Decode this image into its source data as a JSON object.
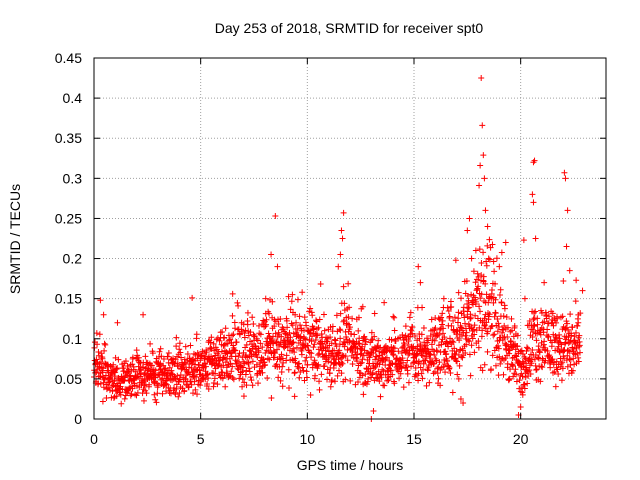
{
  "chart_data": {
    "type": "scatter",
    "title": "Day 253 of 2018, SRMTID for receiver spt0",
    "xlabel": "GPS time / hours",
    "ylabel": "SRMTID / TECUs",
    "xlim": [
      0,
      24
    ],
    "ylim": [
      0,
      0.45
    ],
    "grid": true,
    "marker": "+",
    "series_color": "#ff0000",
    "x_ticks": [
      {
        "value": 0,
        "label": "0"
      },
      {
        "value": 5,
        "label": "5"
      },
      {
        "value": 10,
        "label": "10"
      },
      {
        "value": 15,
        "label": "15"
      },
      {
        "value": 20,
        "label": "20"
      }
    ],
    "y_ticks": [
      {
        "value": 0,
        "label": "0"
      },
      {
        "value": 0.05,
        "label": "0.05"
      },
      {
        "value": 0.1,
        "label": "0.1"
      },
      {
        "value": 0.15,
        "label": "0.15"
      },
      {
        "value": 0.2,
        "label": "0.2"
      },
      {
        "value": 0.25,
        "label": "0.25"
      },
      {
        "value": 0.3,
        "label": "0.3"
      },
      {
        "value": 0.35,
        "label": "0.35"
      },
      {
        "value": 0.4,
        "label": "0.4"
      },
      {
        "value": 0.45,
        "label": "0.45"
      }
    ],
    "series": [
      {
        "name": "spt0",
        "trend": [
          [
            0.0,
            0.065
          ],
          [
            1.0,
            0.05
          ],
          [
            2.0,
            0.055
          ],
          [
            3.0,
            0.055
          ],
          [
            4.0,
            0.06
          ],
          [
            5.0,
            0.065
          ],
          [
            6.0,
            0.075
          ],
          [
            7.0,
            0.08
          ],
          [
            8.0,
            0.085
          ],
          [
            9.0,
            0.09
          ],
          [
            10.0,
            0.09
          ],
          [
            11.0,
            0.085
          ],
          [
            12.0,
            0.09
          ],
          [
            13.0,
            0.07
          ],
          [
            14.0,
            0.075
          ],
          [
            15.0,
            0.08
          ],
          [
            16.0,
            0.085
          ],
          [
            17.0,
            0.1
          ],
          [
            17.5,
            0.12
          ],
          [
            18.0,
            0.15
          ],
          [
            18.5,
            0.14
          ],
          [
            19.0,
            0.11
          ],
          [
            19.5,
            0.09
          ],
          [
            20.0,
            0.06
          ],
          [
            20.5,
            0.09
          ],
          [
            21.0,
            0.1
          ],
          [
            22.0,
            0.09
          ],
          [
            22.8,
            0.085
          ]
        ],
        "highlights": [
          [
            0.3,
            0.148
          ],
          [
            0.45,
            0.13
          ],
          [
            1.1,
            0.12
          ],
          [
            2.3,
            0.13
          ],
          [
            4.6,
            0.151
          ],
          [
            6.5,
            0.156
          ],
          [
            8.05,
            0.15
          ],
          [
            8.3,
            0.205
          ],
          [
            8.5,
            0.253
          ],
          [
            8.6,
            0.19
          ],
          [
            9.3,
            0.155
          ],
          [
            11.7,
            0.257
          ],
          [
            11.6,
            0.235
          ],
          [
            11.65,
            0.225
          ],
          [
            11.55,
            0.205
          ],
          [
            11.45,
            0.19
          ],
          [
            11.7,
            0.165
          ],
          [
            12.6,
            0.14
          ],
          [
            13.0,
            0.0
          ],
          [
            13.1,
            0.01
          ],
          [
            13.6,
            0.145
          ],
          [
            15.2,
            0.19
          ],
          [
            15.3,
            0.17
          ],
          [
            16.4,
            0.15
          ],
          [
            17.1,
            0.05
          ],
          [
            17.2,
            0.025
          ],
          [
            17.3,
            0.02
          ],
          [
            17.5,
            0.235
          ],
          [
            17.6,
            0.25
          ],
          [
            17.7,
            0.2
          ],
          [
            17.9,
            0.21
          ],
          [
            18.05,
            0.291
          ],
          [
            18.1,
            0.316
          ],
          [
            18.15,
            0.425
          ],
          [
            18.2,
            0.366
          ],
          [
            18.25,
            0.329
          ],
          [
            18.3,
            0.3
          ],
          [
            18.35,
            0.26
          ],
          [
            18.45,
            0.24
          ],
          [
            18.5,
            0.2
          ],
          [
            19.0,
            0.19
          ],
          [
            19.3,
            0.22
          ],
          [
            19.9,
            0.005
          ],
          [
            20.0,
            0.015
          ],
          [
            20.1,
            0.03
          ],
          [
            20.15,
            0.223
          ],
          [
            20.2,
            0.15
          ],
          [
            20.6,
            0.32
          ],
          [
            20.65,
            0.322
          ],
          [
            20.55,
            0.28
          ],
          [
            20.6,
            0.27
          ],
          [
            20.7,
            0.225
          ],
          [
            21.1,
            0.17
          ],
          [
            21.5,
            0.12
          ],
          [
            22.0,
            0.172
          ],
          [
            22.05,
            0.307
          ],
          [
            22.1,
            0.3
          ],
          [
            22.2,
            0.26
          ],
          [
            22.15,
            0.215
          ],
          [
            22.3,
            0.185
          ],
          [
            22.6,
            0.173
          ],
          [
            22.9,
            0.16
          ],
          [
            22.7,
            0.12
          ]
        ]
      }
    ]
  }
}
